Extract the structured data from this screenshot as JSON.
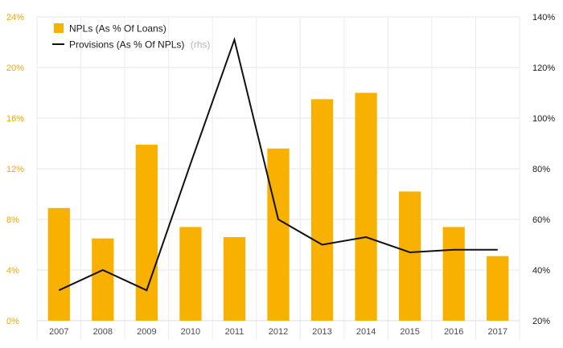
{
  "chart_data": {
    "type": "bar+line",
    "categories": [
      "2007",
      "2008",
      "2009",
      "2010",
      "2011",
      "2012",
      "2013",
      "2014",
      "2015",
      "2016",
      "2017"
    ],
    "series": [
      {
        "name": "NPLs (As % Of Loans)",
        "type": "bar",
        "axis": "left",
        "color": "#f8b100",
        "values": [
          8.9,
          6.5,
          13.9,
          7.4,
          6.6,
          13.6,
          17.5,
          18.0,
          10.2,
          7.4,
          5.1
        ]
      },
      {
        "name": "Provisions (As % Of NPLs)",
        "name_note": "(rhs)",
        "type": "line",
        "axis": "right",
        "color": "#111111",
        "values": [
          32,
          40,
          32,
          82,
          131,
          60,
          50,
          53,
          47,
          48,
          48
        ]
      }
    ],
    "left_axis": {
      "ticks": [
        0,
        4,
        8,
        12,
        16,
        20,
        24
      ],
      "tick_labels": [
        "0%",
        "4%",
        "8%",
        "12%",
        "16%",
        "20%",
        "24%"
      ],
      "range": [
        0,
        24
      ],
      "color": "#f4a800"
    },
    "right_axis": {
      "ticks": [
        20,
        40,
        60,
        80,
        100,
        120,
        140
      ],
      "tick_labels": [
        "20%",
        "40%",
        "60%",
        "80%",
        "100%",
        "120%",
        "140%"
      ],
      "range": [
        20,
        140
      ],
      "color": "#1a1a1a"
    },
    "grid": true,
    "legend_position": "top-left",
    "title": "",
    "xlabel": "",
    "ylabel": ""
  }
}
